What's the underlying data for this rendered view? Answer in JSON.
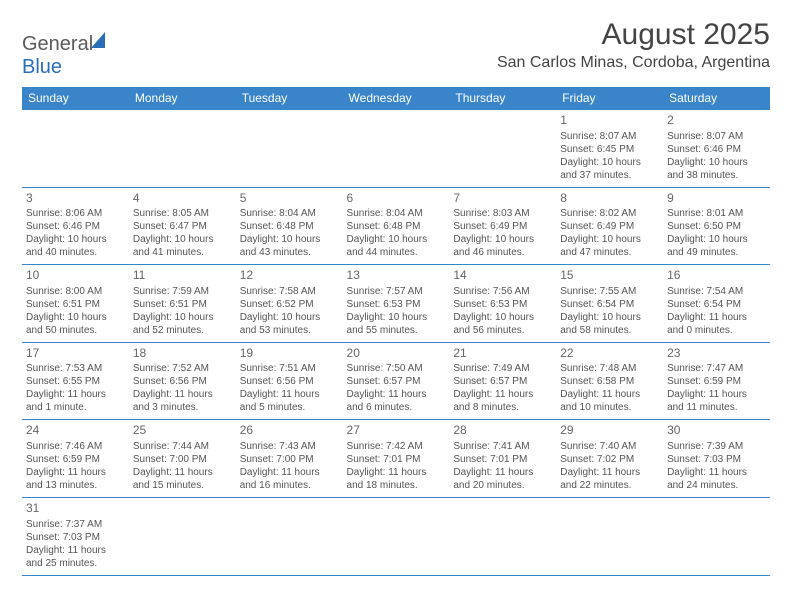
{
  "logo": {
    "part1": "General",
    "part2": "Blue"
  },
  "title": "August 2025",
  "location": "San Carlos Minas, Cordoba, Argentina",
  "headers": [
    "Sunday",
    "Monday",
    "Tuesday",
    "Wednesday",
    "Thursday",
    "Friday",
    "Saturday"
  ],
  "colors": {
    "header_bg": "#3a85c9",
    "header_fg": "#ffffff",
    "border": "#3a85c9",
    "text": "#555555",
    "logo_gray": "#5a5a5a",
    "logo_blue": "#2a6db8"
  },
  "weeks": [
    [
      null,
      null,
      null,
      null,
      null,
      {
        "n": "1",
        "sr": "Sunrise: 8:07 AM",
        "ss": "Sunset: 6:45 PM",
        "dl": "Daylight: 10 hours and 37 minutes."
      },
      {
        "n": "2",
        "sr": "Sunrise: 8:07 AM",
        "ss": "Sunset: 6:46 PM",
        "dl": "Daylight: 10 hours and 38 minutes."
      }
    ],
    [
      {
        "n": "3",
        "sr": "Sunrise: 8:06 AM",
        "ss": "Sunset: 6:46 PM",
        "dl": "Daylight: 10 hours and 40 minutes."
      },
      {
        "n": "4",
        "sr": "Sunrise: 8:05 AM",
        "ss": "Sunset: 6:47 PM",
        "dl": "Daylight: 10 hours and 41 minutes."
      },
      {
        "n": "5",
        "sr": "Sunrise: 8:04 AM",
        "ss": "Sunset: 6:48 PM",
        "dl": "Daylight: 10 hours and 43 minutes."
      },
      {
        "n": "6",
        "sr": "Sunrise: 8:04 AM",
        "ss": "Sunset: 6:48 PM",
        "dl": "Daylight: 10 hours and 44 minutes."
      },
      {
        "n": "7",
        "sr": "Sunrise: 8:03 AM",
        "ss": "Sunset: 6:49 PM",
        "dl": "Daylight: 10 hours and 46 minutes."
      },
      {
        "n": "8",
        "sr": "Sunrise: 8:02 AM",
        "ss": "Sunset: 6:49 PM",
        "dl": "Daylight: 10 hours and 47 minutes."
      },
      {
        "n": "9",
        "sr": "Sunrise: 8:01 AM",
        "ss": "Sunset: 6:50 PM",
        "dl": "Daylight: 10 hours and 49 minutes."
      }
    ],
    [
      {
        "n": "10",
        "sr": "Sunrise: 8:00 AM",
        "ss": "Sunset: 6:51 PM",
        "dl": "Daylight: 10 hours and 50 minutes."
      },
      {
        "n": "11",
        "sr": "Sunrise: 7:59 AM",
        "ss": "Sunset: 6:51 PM",
        "dl": "Daylight: 10 hours and 52 minutes."
      },
      {
        "n": "12",
        "sr": "Sunrise: 7:58 AM",
        "ss": "Sunset: 6:52 PM",
        "dl": "Daylight: 10 hours and 53 minutes."
      },
      {
        "n": "13",
        "sr": "Sunrise: 7:57 AM",
        "ss": "Sunset: 6:53 PM",
        "dl": "Daylight: 10 hours and 55 minutes."
      },
      {
        "n": "14",
        "sr": "Sunrise: 7:56 AM",
        "ss": "Sunset: 6:53 PM",
        "dl": "Daylight: 10 hours and 56 minutes."
      },
      {
        "n": "15",
        "sr": "Sunrise: 7:55 AM",
        "ss": "Sunset: 6:54 PM",
        "dl": "Daylight: 10 hours and 58 minutes."
      },
      {
        "n": "16",
        "sr": "Sunrise: 7:54 AM",
        "ss": "Sunset: 6:54 PM",
        "dl": "Daylight: 11 hours and 0 minutes."
      }
    ],
    [
      {
        "n": "17",
        "sr": "Sunrise: 7:53 AM",
        "ss": "Sunset: 6:55 PM",
        "dl": "Daylight: 11 hours and 1 minute."
      },
      {
        "n": "18",
        "sr": "Sunrise: 7:52 AM",
        "ss": "Sunset: 6:56 PM",
        "dl": "Daylight: 11 hours and 3 minutes."
      },
      {
        "n": "19",
        "sr": "Sunrise: 7:51 AM",
        "ss": "Sunset: 6:56 PM",
        "dl": "Daylight: 11 hours and 5 minutes."
      },
      {
        "n": "20",
        "sr": "Sunrise: 7:50 AM",
        "ss": "Sunset: 6:57 PM",
        "dl": "Daylight: 11 hours and 6 minutes."
      },
      {
        "n": "21",
        "sr": "Sunrise: 7:49 AM",
        "ss": "Sunset: 6:57 PM",
        "dl": "Daylight: 11 hours and 8 minutes."
      },
      {
        "n": "22",
        "sr": "Sunrise: 7:48 AM",
        "ss": "Sunset: 6:58 PM",
        "dl": "Daylight: 11 hours and 10 minutes."
      },
      {
        "n": "23",
        "sr": "Sunrise: 7:47 AM",
        "ss": "Sunset: 6:59 PM",
        "dl": "Daylight: 11 hours and 11 minutes."
      }
    ],
    [
      {
        "n": "24",
        "sr": "Sunrise: 7:46 AM",
        "ss": "Sunset: 6:59 PM",
        "dl": "Daylight: 11 hours and 13 minutes."
      },
      {
        "n": "25",
        "sr": "Sunrise: 7:44 AM",
        "ss": "Sunset: 7:00 PM",
        "dl": "Daylight: 11 hours and 15 minutes."
      },
      {
        "n": "26",
        "sr": "Sunrise: 7:43 AM",
        "ss": "Sunset: 7:00 PM",
        "dl": "Daylight: 11 hours and 16 minutes."
      },
      {
        "n": "27",
        "sr": "Sunrise: 7:42 AM",
        "ss": "Sunset: 7:01 PM",
        "dl": "Daylight: 11 hours and 18 minutes."
      },
      {
        "n": "28",
        "sr": "Sunrise: 7:41 AM",
        "ss": "Sunset: 7:01 PM",
        "dl": "Daylight: 11 hours and 20 minutes."
      },
      {
        "n": "29",
        "sr": "Sunrise: 7:40 AM",
        "ss": "Sunset: 7:02 PM",
        "dl": "Daylight: 11 hours and 22 minutes."
      },
      {
        "n": "30",
        "sr": "Sunrise: 7:39 AM",
        "ss": "Sunset: 7:03 PM",
        "dl": "Daylight: 11 hours and 24 minutes."
      }
    ],
    [
      {
        "n": "31",
        "sr": "Sunrise: 7:37 AM",
        "ss": "Sunset: 7:03 PM",
        "dl": "Daylight: 11 hours and 25 minutes."
      },
      null,
      null,
      null,
      null,
      null,
      null
    ]
  ]
}
